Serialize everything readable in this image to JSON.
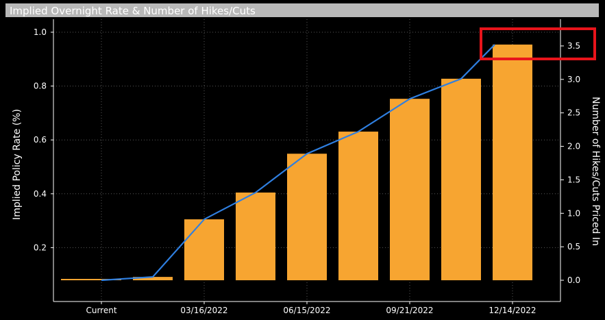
{
  "colors": {
    "background": "#000000",
    "title_bar": "#b8b8b8",
    "bar": "#f7a531",
    "line": "#2f7fe0",
    "highlight": "#e8141b",
    "axis": "#ffffff",
    "grid": "#5a5a5a"
  },
  "chart_data": {
    "type": "bar",
    "title": "Implied Overnight Rate & Number of Hikes/Cuts",
    "ylabel": "Implied Policy Rate (%)",
    "y2label": "Number of Hikes/Cuts Priced In",
    "ylim": [
      0.0,
      1.0
    ],
    "y2lim": [
      -0.3,
      3.85
    ],
    "yticks": [
      {
        "value": 0.2,
        "label": "0.2"
      },
      {
        "value": 0.4,
        "label": "0.4"
      },
      {
        "value": 0.6,
        "label": "0.6"
      },
      {
        "value": 0.8,
        "label": "0.8"
      },
      {
        "value": 1.0,
        "label": "1.0"
      }
    ],
    "y2ticks": [
      {
        "value": 0.0,
        "label": "0.0"
      },
      {
        "value": 0.5,
        "label": "0.5"
      },
      {
        "value": 1.0,
        "label": "1.0"
      },
      {
        "value": 1.5,
        "label": "1.5"
      },
      {
        "value": 2.0,
        "label": "2.0"
      },
      {
        "value": 2.5,
        "label": "2.5"
      },
      {
        "value": 3.0,
        "label": "3.0"
      },
      {
        "value": 3.5,
        "label": "3.5"
      }
    ],
    "xtick_labels": [
      {
        "index": 0,
        "label": "Current"
      },
      {
        "index": 2,
        "label": "03/16/2022"
      },
      {
        "index": 4,
        "label": "06/15/2022"
      },
      {
        "index": 6,
        "label": "09/21/2022"
      },
      {
        "index": 8,
        "label": "12/14/2022"
      }
    ],
    "categories": [
      "Current",
      "",
      "03/16/2022",
      "",
      "06/15/2022",
      "",
      "09/21/2022",
      "",
      "12/14/2022"
    ],
    "bar_values": [
      0.0,
      0.05,
      0.91,
      1.31,
      1.89,
      2.22,
      2.71,
      3.01,
      3.52
    ],
    "line_values": [
      0.0,
      0.05,
      0.91,
      1.31,
      1.89,
      2.22,
      2.71,
      3.01,
      3.52
    ],
    "highlight_label": "3.5",
    "grid": true
  }
}
